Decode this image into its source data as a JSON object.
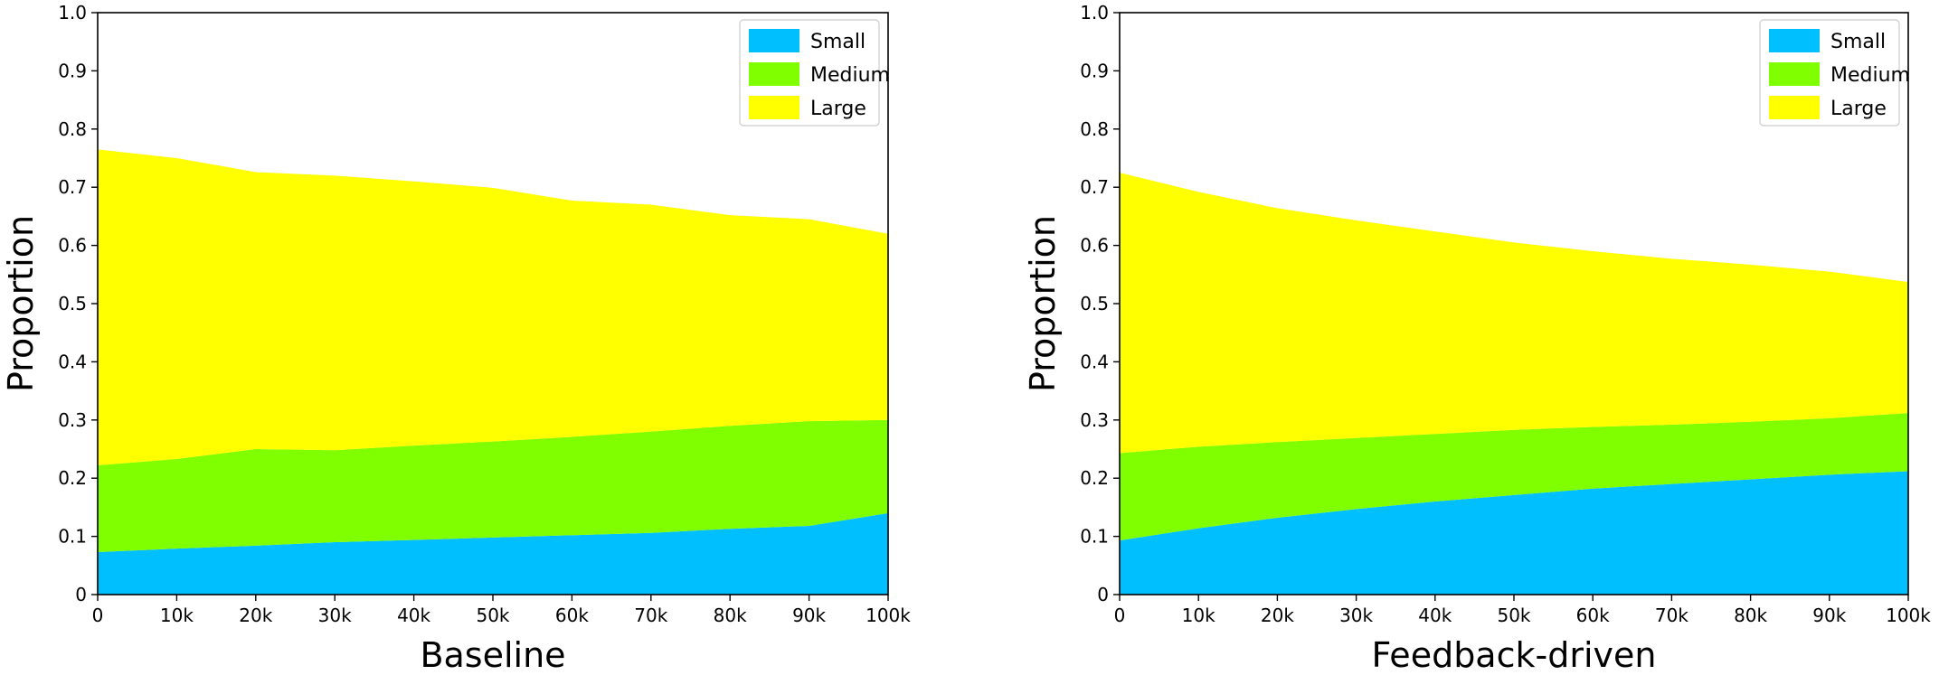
{
  "chart_data": [
    {
      "type": "area",
      "stacked": true,
      "xlabel": "Baseline",
      "ylabel": "Proportion",
      "x": [
        0,
        10000,
        20000,
        30000,
        40000,
        50000,
        60000,
        70000,
        80000,
        90000,
        100000
      ],
      "xtick_labels": [
        "0",
        "10k",
        "20k",
        "30k",
        "40k",
        "50k",
        "60k",
        "70k",
        "80k",
        "90k",
        "100k"
      ],
      "ytick_labels": [
        "0",
        "0.1",
        "0.2",
        "0.3",
        "0.4",
        "0.5",
        "0.6",
        "0.7",
        "0.8",
        "0.9",
        "1.0"
      ],
      "xlim": [
        0,
        100000
      ],
      "ylim": [
        0,
        1.0
      ],
      "grid": false,
      "legend_position": "top-right",
      "series": [
        {
          "name": "Small",
          "color": "#00bfff",
          "values": [
            0.073,
            0.079,
            0.084,
            0.09,
            0.094,
            0.098,
            0.102,
            0.106,
            0.113,
            0.118,
            0.14
          ]
        },
        {
          "name": "Medium",
          "color": "#7fff00",
          "values": [
            0.149,
            0.154,
            0.166,
            0.158,
            0.162,
            0.165,
            0.169,
            0.174,
            0.177,
            0.18,
            0.16
          ]
        },
        {
          "name": "Large",
          "color": "#ffff00",
          "values": [
            0.543,
            0.517,
            0.476,
            0.472,
            0.454,
            0.436,
            0.406,
            0.39,
            0.362,
            0.347,
            0.32
          ]
        }
      ]
    },
    {
      "type": "area",
      "stacked": true,
      "xlabel": "Feedback-driven",
      "ylabel": "Proportion",
      "x": [
        0,
        10000,
        20000,
        30000,
        40000,
        50000,
        60000,
        70000,
        80000,
        90000,
        100000
      ],
      "xtick_labels": [
        "0",
        "10k",
        "20k",
        "30k",
        "40k",
        "50k",
        "60k",
        "70k",
        "80k",
        "90k",
        "100k"
      ],
      "ytick_labels": [
        "0",
        "0.1",
        "0.2",
        "0.3",
        "0.4",
        "0.5",
        "0.6",
        "0.7",
        "0.8",
        "0.9",
        "1.0"
      ],
      "xlim": [
        0,
        100000
      ],
      "ylim": [
        0,
        1.0
      ],
      "grid": false,
      "legend_position": "top-right",
      "series": [
        {
          "name": "Small",
          "color": "#00bfff",
          "values": [
            0.093,
            0.114,
            0.132,
            0.147,
            0.16,
            0.171,
            0.182,
            0.19,
            0.198,
            0.206,
            0.212
          ]
        },
        {
          "name": "Medium",
          "color": "#7fff00",
          "values": [
            0.15,
            0.14,
            0.13,
            0.122,
            0.116,
            0.112,
            0.106,
            0.102,
            0.099,
            0.097,
            0.1
          ]
        },
        {
          "name": "Large",
          "color": "#ffff00",
          "values": [
            0.482,
            0.438,
            0.402,
            0.374,
            0.348,
            0.322,
            0.302,
            0.285,
            0.27,
            0.252,
            0.225
          ]
        }
      ]
    }
  ]
}
